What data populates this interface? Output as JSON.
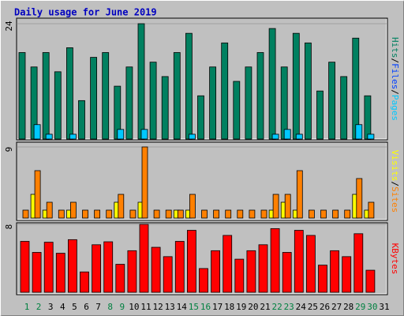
{
  "title": "Daily usage for June 2019",
  "legend_separator": "/",
  "weekend_color": "#008040",
  "weekends": [
    "1",
    "2",
    "8",
    "9",
    "15",
    "16",
    "22",
    "23",
    "29",
    "30"
  ],
  "chart_data": [
    {
      "type": "bar",
      "categories": [
        "1",
        "2",
        "3",
        "4",
        "5",
        "6",
        "7",
        "8",
        "9",
        "10",
        "11",
        "12",
        "13",
        "14",
        "15",
        "16",
        "17",
        "18",
        "19",
        "20",
        "21",
        "22",
        "23",
        "24",
        "25",
        "26",
        "27",
        "28",
        "29",
        "30",
        "31"
      ],
      "ylim": [
        0,
        24
      ],
      "yticks": [
        24
      ],
      "series": [
        {
          "name": "Hits",
          "color": "#008060",
          "values": [
            18,
            15,
            18,
            14,
            19,
            8,
            17,
            18,
            11,
            15,
            24,
            16,
            13,
            18,
            22,
            9,
            15,
            20,
            12,
            15,
            18,
            23,
            15,
            22,
            20,
            10,
            16,
            13,
            21,
            9,
            null
          ]
        },
        {
          "name": "Files",
          "color": "#0040ff",
          "values": [
            0,
            0,
            0,
            0,
            0,
            0,
            0,
            0,
            0,
            0,
            0,
            0,
            0,
            0,
            0,
            0,
            0,
            0,
            0,
            0,
            0,
            0,
            0,
            0,
            0,
            0,
            0,
            0,
            0,
            0,
            null
          ]
        },
        {
          "name": "Pages",
          "color": "#00c8ff",
          "values": [
            0,
            3,
            1,
            0,
            1,
            0,
            0,
            0,
            2,
            0,
            2,
            0,
            0,
            0,
            1,
            0,
            0,
            0,
            0,
            0,
            0,
            1,
            2,
            1,
            0,
            0,
            0,
            0,
            3,
            1,
            null
          ]
        }
      ]
    },
    {
      "type": "bar",
      "ylim": [
        0,
        9
      ],
      "yticks": [
        9
      ],
      "series": [
        {
          "name": "Visits",
          "color": "#ffff00",
          "values": [
            0,
            3,
            1,
            0,
            1,
            0,
            0,
            0,
            2,
            0,
            2,
            0,
            0,
            1,
            1,
            0,
            0,
            0,
            0,
            0,
            0,
            1,
            2,
            1,
            0,
            0,
            0,
            0,
            3,
            1,
            null
          ]
        },
        {
          "name": "Sites",
          "color": "#ff8000",
          "values": [
            1,
            6,
            2,
            1,
            2,
            1,
            1,
            1,
            3,
            1,
            9,
            1,
            1,
            1,
            3,
            1,
            1,
            1,
            1,
            1,
            1,
            3,
            3,
            6,
            1,
            1,
            1,
            1,
            5,
            2,
            null
          ]
        }
      ]
    },
    {
      "type": "bar",
      "ylim": [
        0,
        8
      ],
      "yticks": [
        8
      ],
      "series": [
        {
          "name": "KBytes",
          "color": "#ff0000",
          "values": [
            6.0,
            4.7,
            5.9,
            4.6,
            6.2,
            2.4,
            5.6,
            5.95,
            3.3,
            4.9,
            8.0,
            5.3,
            4.2,
            6.0,
            7.3,
            2.8,
            4.9,
            6.7,
            3.9,
            4.9,
            5.6,
            7.5,
            4.7,
            7.3,
            6.7,
            3.2,
            4.9,
            4.2,
            6.9,
            2.6,
            null
          ]
        }
      ]
    }
  ]
}
